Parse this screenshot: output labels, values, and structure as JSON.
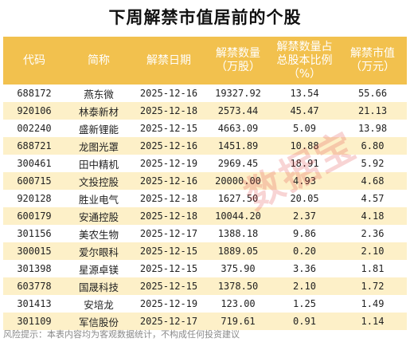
{
  "title": "下周解禁市值居前的个股",
  "headers": [
    "代码",
    "简称",
    "解禁日期",
    "解禁数量（万股）",
    "解禁数量占总股本比例（%）",
    "解禁市值（万元）"
  ],
  "header_lines": [
    [
      "代码"
    ],
    [
      "简称"
    ],
    [
      "解禁日期"
    ],
    [
      "解禁数量",
      "（万股）"
    ],
    [
      "解禁数量占",
      "总股本比例",
      "（%）"
    ],
    [
      "解禁市值",
      "（万元）"
    ]
  ],
  "rows": [
    [
      "688172",
      "燕东微",
      "2025-12-16",
      "19327.92",
      "13.54",
      "55.66"
    ],
    [
      "920106",
      "林泰新材",
      "2025-12-18",
      "2573.44",
      "45.47",
      "21.13"
    ],
    [
      "002240",
      "盛新锂能",
      "2025-12-15",
      "4663.09",
      "5.09",
      "13.98"
    ],
    [
      "688721",
      "龙图光罩",
      "2025-12-16",
      "1451.89",
      "10.88",
      "6.80"
    ],
    [
      "300461",
      "田中精机",
      "2025-12-19",
      "2969.45",
      "18.91",
      "5.92"
    ],
    [
      "600715",
      "文投控股",
      "2025-12-16",
      "20000.00",
      "4.93",
      "4.68"
    ],
    [
      "920128",
      "胜业电气",
      "2025-12-18",
      "1627.50",
      "20.05",
      "4.57"
    ],
    [
      "600179",
      "安通控股",
      "2025-12-18",
      "10044.20",
      "2.37",
      "4.18"
    ],
    [
      "301156",
      "美农生物",
      "2025-12-17",
      "1388.18",
      "9.86",
      "2.36"
    ],
    [
      "300015",
      "爱尔眼科",
      "2025-12-15",
      "1889.05",
      "0.20",
      "2.10"
    ],
    [
      "301398",
      "星源卓镁",
      "2025-12-15",
      "375.90",
      "3.36",
      "1.81"
    ],
    [
      "603778",
      "国晟科技",
      "2025-12-15",
      "1378.50",
      "2.10",
      "1.72"
    ],
    [
      "301413",
      "安培龙",
      "2025-12-19",
      "123.00",
      "1.25",
      "1.49"
    ],
    [
      "301109",
      "军信股份",
      "2025-12-17",
      "719.61",
      "0.91",
      "1.14"
    ]
  ],
  "watermark": "数据宝",
  "footer": "风险提示：本表内容均为客观数据统计，不构成任何投资建议",
  "colors": {
    "header_bg": "#f2c14e",
    "stripe": "#fdf0c8",
    "watermark": "#e13c3c"
  }
}
